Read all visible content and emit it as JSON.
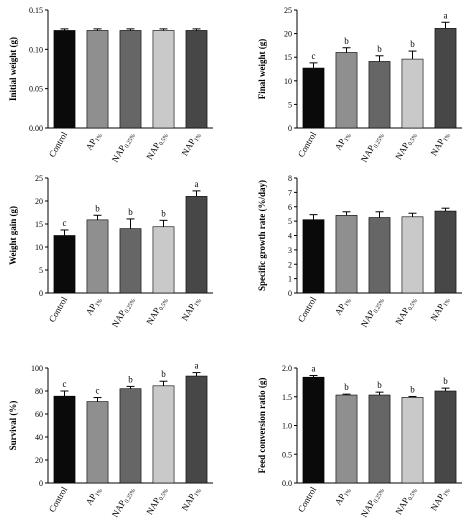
{
  "chart_data": [
    {
      "type": "bar",
      "ylabel": "Initial weight (g)",
      "ylim": [
        0.0,
        0.15
      ],
      "yticks": [
        "0.00",
        "0.05",
        "0.10",
        "0.15"
      ],
      "categories": [
        {
          "base": "Control",
          "sub": ""
        },
        {
          "base": "AP",
          "sub": "1%"
        },
        {
          "base": "NAP",
          "sub": "0.25%"
        },
        {
          "base": "NAP",
          "sub": "0.5%"
        },
        {
          "base": "NAP",
          "sub": "1%"
        }
      ],
      "values": [
        0.124,
        0.124,
        0.124,
        0.124,
        0.124
      ],
      "errors": [
        0.002,
        0.002,
        0.002,
        0.002,
        0.002
      ],
      "letters": [
        "",
        "",
        "",
        "",
        ""
      ]
    },
    {
      "type": "bar",
      "ylabel": "Final weight (g)",
      "ylim": [
        0,
        25
      ],
      "yticks": [
        "0",
        "5",
        "10",
        "15",
        "20",
        "25"
      ],
      "categories": [
        {
          "base": "Control",
          "sub": ""
        },
        {
          "base": "AP",
          "sub": "1%"
        },
        {
          "base": "NAP",
          "sub": "0.25%"
        },
        {
          "base": "NAP",
          "sub": "0.5%"
        },
        {
          "base": "NAP",
          "sub": "1%"
        }
      ],
      "values": [
        12.7,
        16.0,
        14.1,
        14.6,
        21.1
      ],
      "errors": [
        1.1,
        1.0,
        1.2,
        1.7,
        1.3
      ],
      "letters": [
        "c",
        "b",
        "b",
        "b",
        "a"
      ]
    },
    {
      "type": "bar",
      "ylabel": "Weight gain (g)",
      "ylim": [
        0,
        25
      ],
      "yticks": [
        "0",
        "5",
        "10",
        "15",
        "20",
        "25"
      ],
      "categories": [
        {
          "base": "Control",
          "sub": ""
        },
        {
          "base": "AP",
          "sub": "1%"
        },
        {
          "base": "NAP",
          "sub": "0.25%"
        },
        {
          "base": "NAP",
          "sub": "0.5%"
        },
        {
          "base": "NAP",
          "sub": "1%"
        }
      ],
      "values": [
        12.5,
        15.9,
        14.0,
        14.4,
        21.0
      ],
      "errors": [
        1.2,
        1.0,
        2.1,
        1.4,
        1.2
      ],
      "letters": [
        "c",
        "b",
        "b",
        "b",
        "a"
      ]
    },
    {
      "type": "bar",
      "ylabel": "Specific growth rate (%/day)",
      "ylim": [
        0,
        8
      ],
      "yticks": [
        "0",
        "1",
        "2",
        "3",
        "4",
        "5",
        "6",
        "7",
        "8"
      ],
      "categories": [
        {
          "base": "Control",
          "sub": ""
        },
        {
          "base": "AP",
          "sub": "1%"
        },
        {
          "base": "NAP",
          "sub": "0.25%"
        },
        {
          "base": "NAP",
          "sub": "0.5%"
        },
        {
          "base": "NAP",
          "sub": "1%"
        }
      ],
      "values": [
        5.1,
        5.4,
        5.25,
        5.3,
        5.7
      ],
      "errors": [
        0.35,
        0.25,
        0.4,
        0.25,
        0.2
      ],
      "letters": [
        "",
        "",
        "",
        "",
        ""
      ]
    },
    {
      "type": "bar",
      "ylabel": "Survival (%)",
      "ylim": [
        0,
        100
      ],
      "yticks": [
        "0",
        "20",
        "40",
        "60",
        "80",
        "100"
      ],
      "categories": [
        {
          "base": "Control",
          "sub": ""
        },
        {
          "base": "AP",
          "sub": "1%"
        },
        {
          "base": "NAP",
          "sub": "0.25%"
        },
        {
          "base": "NAP",
          "sub": "0.5%"
        },
        {
          "base": "NAP",
          "sub": "1%"
        }
      ],
      "values": [
        75.5,
        70.8,
        82.0,
        84.5,
        93.0
      ],
      "errors": [
        4.5,
        3.5,
        2.0,
        4.0,
        3.0
      ],
      "letters": [
        "c",
        "c",
        "b",
        "b",
        "a"
      ]
    },
    {
      "type": "bar",
      "ylabel": "Feed conversion ratio (g)",
      "ylim": [
        0.0,
        2.0
      ],
      "yticks": [
        "0.0",
        "0.5",
        "1.0",
        "1.5",
        "2.0"
      ],
      "categories": [
        {
          "base": "Control",
          "sub": ""
        },
        {
          "base": "AP",
          "sub": "1%"
        },
        {
          "base": "NAP",
          "sub": "0.25%"
        },
        {
          "base": "NAP",
          "sub": "0.5%"
        },
        {
          "base": "NAP",
          "sub": "1%"
        }
      ],
      "values": [
        1.84,
        1.53,
        1.53,
        1.49,
        1.6
      ],
      "errors": [
        0.03,
        0.015,
        0.05,
        0.015,
        0.05
      ],
      "letters": [
        "a",
        "b",
        "b",
        "b",
        "b"
      ]
    }
  ],
  "colors": {
    "bars": [
      "#0a0a0a",
      "#8f8f8f",
      "#666666",
      "#c9c9c9",
      "#474747"
    ],
    "axis": "#000000"
  }
}
